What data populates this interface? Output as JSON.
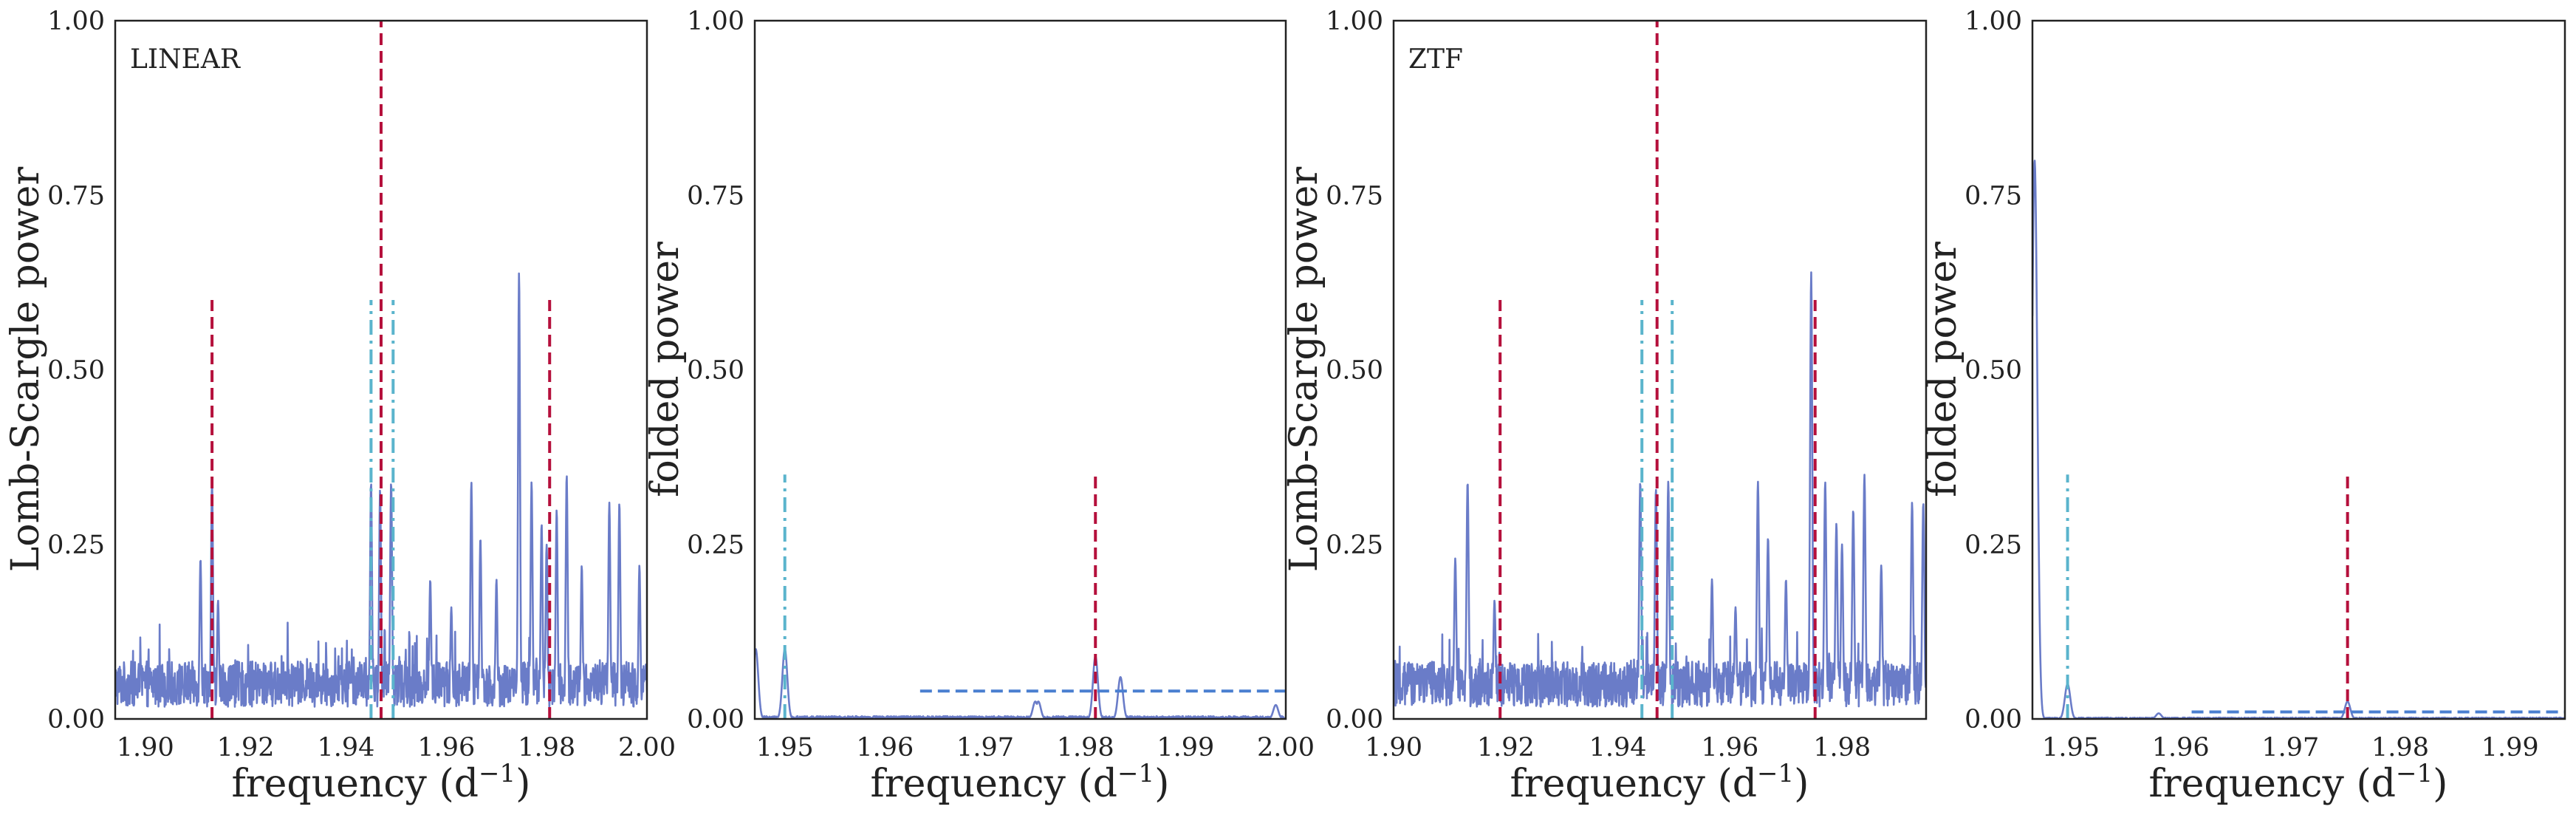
{
  "chart_data": [
    {
      "type": "line",
      "panel_label": "LINEAR",
      "xlabel": "frequency (d",
      "xlabel_sup": "−1",
      "xlabel_end": ")",
      "ylabel": "Lomb-Scargle power",
      "xlim": [
        1.894,
        2.0
      ],
      "ylim": [
        0,
        1
      ],
      "x_ticks": [
        "1.90",
        "1.92",
        "1.94",
        "1.96",
        "1.98",
        "2.00"
      ],
      "x_tick_values": [
        1.9,
        1.92,
        1.94,
        1.96,
        1.98,
        2.0
      ],
      "y_ticks": [
        "0.00",
        "0.25",
        "0.50",
        "0.75",
        "1.00"
      ],
      "y_tick_values": [
        0,
        0.25,
        0.5,
        0.75,
        1.0
      ],
      "grid": false,
      "series": [
        {
          "style": "noisy-periodogram",
          "x": [
            1.894,
            2.0
          ],
          "baseline": 0.05,
          "peaks": [
            [
              1.911,
              0.23
            ],
            [
              1.9133,
              0.34
            ],
            [
              1.9145,
              0.17
            ],
            [
              1.945,
              0.34
            ],
            [
              1.9468,
              0.33
            ],
            [
              1.949,
              0.34
            ],
            [
              1.9568,
              0.2
            ],
            [
              1.961,
              0.16
            ],
            [
              1.965,
              0.34
            ],
            [
              1.9668,
              0.26
            ],
            [
              1.97,
              0.2
            ],
            [
              1.9745,
              0.64
            ],
            [
              1.977,
              0.34
            ],
            [
              1.979,
              0.28
            ],
            [
              1.98,
              0.25
            ],
            [
              1.982,
              0.3
            ],
            [
              1.984,
              0.35
            ],
            [
              1.987,
              0.22
            ],
            [
              1.9925,
              0.31
            ],
            [
              1.9945,
              0.31
            ],
            [
              1.9985,
              0.22
            ]
          ]
        }
      ],
      "vlines": [
        {
          "x": 1.947,
          "ymax": 1.0,
          "style": "dashed",
          "color": "#b5103c"
        },
        {
          "x": 1.9133,
          "ymax": 0.6,
          "style": "dashed",
          "color": "#b5103c"
        },
        {
          "x": 1.9806,
          "ymax": 0.6,
          "style": "dashed",
          "color": "#b5103c"
        },
        {
          "x": 1.945,
          "ymax": 0.6,
          "style": "dashdot",
          "color": "#5ab4cc"
        },
        {
          "x": 1.9494,
          "ymax": 0.6,
          "style": "dashdot",
          "color": "#5ab4cc"
        }
      ],
      "hlines": []
    },
    {
      "type": "line",
      "panel_label": "",
      "xlabel": "frequency (d",
      "xlabel_sup": "−1",
      "xlabel_end": ")",
      "ylabel": "folded power",
      "xlim": [
        1.947,
        2.0
      ],
      "ylim": [
        0,
        1
      ],
      "x_ticks": [
        "1.95",
        "1.96",
        "1.97",
        "1.98",
        "1.99",
        "2.00"
      ],
      "x_tick_values": [
        1.95,
        1.96,
        1.97,
        1.98,
        1.99,
        2.0
      ],
      "y_ticks": [
        "0.00",
        "0.25",
        "0.50",
        "0.75",
        "1.00"
      ],
      "y_tick_values": [
        0,
        0.25,
        0.5,
        0.75,
        1.0
      ],
      "grid": false,
      "series": [
        {
          "style": "sparse-periodogram",
          "x": [
            1.947,
            2.0
          ],
          "baseline": 0.004,
          "peaks": [
            [
              1.9471,
              0.1
            ],
            [
              1.95,
              0.1
            ],
            [
              1.975,
              0.025
            ],
            [
              1.9753,
              0.025
            ],
            [
              1.981,
              0.09
            ],
            [
              1.9835,
              0.06
            ],
            [
              1.999,
              0.02
            ]
          ]
        }
      ],
      "vlines": [
        {
          "x": 1.95,
          "ymax": 0.35,
          "style": "dashdot",
          "color": "#5ab4cc"
        },
        {
          "x": 1.981,
          "ymax": 0.35,
          "style": "dashed",
          "color": "#b5103c"
        }
      ],
      "hlines": [
        {
          "y": 0.04,
          "xmin": 1.9635,
          "xmax": 2.0,
          "style": "dashed",
          "color": "#4a7fd0"
        }
      ]
    },
    {
      "type": "line",
      "panel_label": "ZTF",
      "xlabel": "frequency (d",
      "xlabel_sup": "−1",
      "xlabel_end": ")",
      "ylabel": "Lomb-Scargle power",
      "xlim": [
        1.9,
        1.995
      ],
      "ylim": [
        0,
        1
      ],
      "x_ticks": [
        "1.90",
        "1.92",
        "1.94",
        "1.96",
        "1.98"
      ],
      "x_tick_values": [
        1.9,
        1.92,
        1.94,
        1.96,
        1.98
      ],
      "y_ticks": [
        "0.00",
        "0.25",
        "0.50",
        "0.75",
        "1.00"
      ],
      "y_tick_values": [
        0,
        0.25,
        0.5,
        0.75,
        1.0
      ],
      "grid": false,
      "series": [
        {
          "style": "noisy-periodogram",
          "x": [
            1.9,
            1.995
          ],
          "baseline": 0.05,
          "peaks": [
            [
              1.911,
              0.23
            ],
            [
              1.9132,
              0.34
            ],
            [
              1.918,
              0.17
            ],
            [
              1.944,
              0.34
            ],
            [
              1.9468,
              0.33
            ],
            [
              1.949,
              0.34
            ],
            [
              1.9568,
              0.2
            ],
            [
              1.961,
              0.16
            ],
            [
              1.965,
              0.34
            ],
            [
              1.9668,
              0.26
            ],
            [
              1.97,
              0.2
            ],
            [
              1.9745,
              0.64
            ],
            [
              1.977,
              0.34
            ],
            [
              1.979,
              0.28
            ],
            [
              1.98,
              0.25
            ],
            [
              1.982,
              0.3
            ],
            [
              1.984,
              0.35
            ],
            [
              1.987,
              0.22
            ],
            [
              1.9925,
              0.31
            ],
            [
              1.9945,
              0.31
            ]
          ]
        }
      ],
      "vlines": [
        {
          "x": 1.947,
          "ymax": 1.0,
          "style": "dashed",
          "color": "#b5103c"
        },
        {
          "x": 1.919,
          "ymax": 0.6,
          "style": "dashed",
          "color": "#b5103c"
        },
        {
          "x": 1.9752,
          "ymax": 0.6,
          "style": "dashed",
          "color": "#b5103c"
        },
        {
          "x": 1.9443,
          "ymax": 0.6,
          "style": "dashdot",
          "color": "#5ab4cc"
        },
        {
          "x": 1.9497,
          "ymax": 0.6,
          "style": "dashdot",
          "color": "#5ab4cc"
        }
      ],
      "hlines": []
    },
    {
      "type": "line",
      "panel_label": "",
      "xlabel": "frequency (d",
      "xlabel_sup": "−1",
      "xlabel_end": ")",
      "ylabel": "folded power",
      "xlim": [
        1.9465,
        1.995
      ],
      "ylim": [
        0,
        1
      ],
      "x_ticks": [
        "1.95",
        "1.96",
        "1.97",
        "1.98",
        "1.99"
      ],
      "x_tick_values": [
        1.95,
        1.96,
        1.97,
        1.98,
        1.99
      ],
      "y_ticks": [
        "0.00",
        "0.25",
        "0.50",
        "0.75",
        "1.00"
      ],
      "y_tick_values": [
        0,
        0.25,
        0.5,
        0.75,
        1.0
      ],
      "grid": false,
      "series": [
        {
          "style": "sparse-periodogram",
          "x": [
            1.9465,
            1.995
          ],
          "baseline": 0.002,
          "peaks": [
            [
              1.9467,
              0.8
            ],
            [
              1.9497,
              0.05
            ],
            [
              1.958,
              0.008
            ],
            [
              1.9752,
              0.025
            ]
          ]
        }
      ],
      "vlines": [
        {
          "x": 1.9497,
          "ymax": 0.35,
          "style": "dashdot",
          "color": "#5ab4cc"
        },
        {
          "x": 1.9752,
          "ymax": 0.35,
          "style": "dashed",
          "color": "#b5103c"
        }
      ],
      "hlines": [
        {
          "y": 0.01,
          "xmin": 1.961,
          "xmax": 1.995,
          "style": "dashed",
          "color": "#4a7fd0"
        }
      ]
    }
  ],
  "colors": {
    "series_line": "#6a7cc8",
    "primary_frequency": "#b5103c",
    "alias_frequency": "#5ab4cc",
    "threshold": "#4a7fd0"
  }
}
